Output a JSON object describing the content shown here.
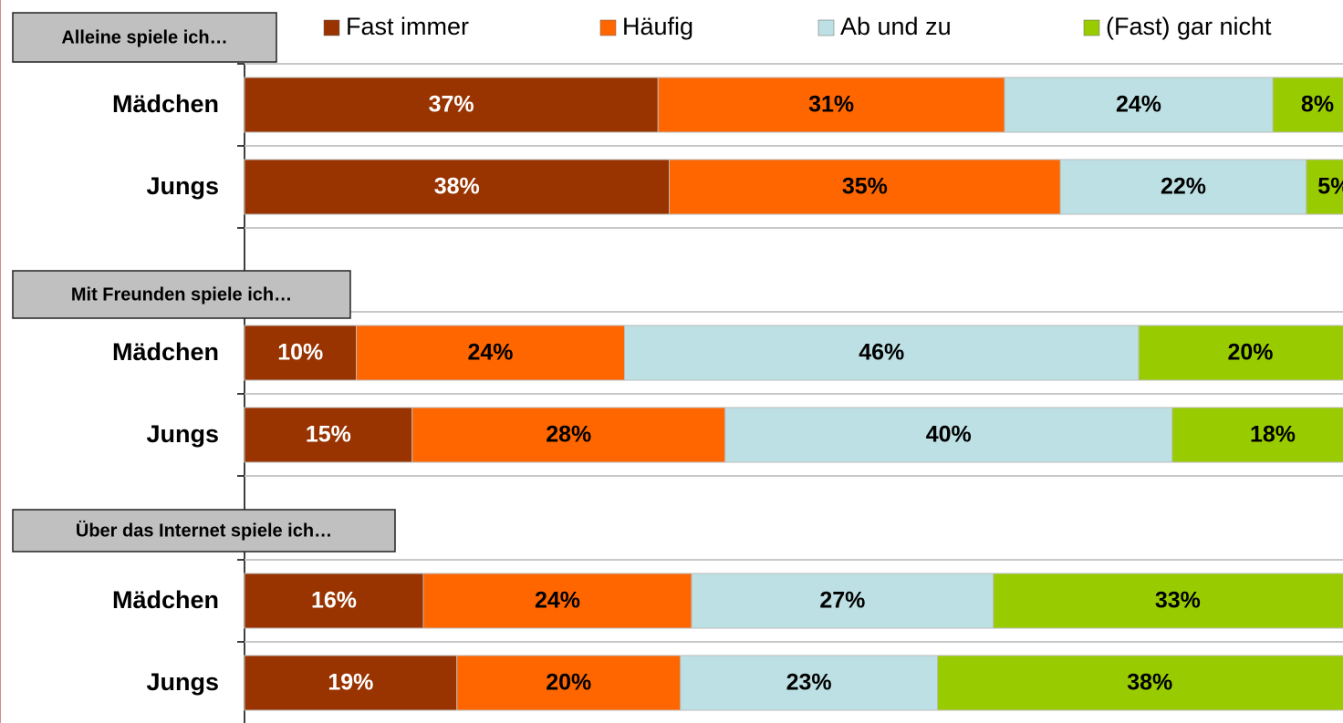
{
  "chart_data": {
    "type": "bar",
    "orientation": "horizontal",
    "stacked": true,
    "xlim": [
      0,
      100
    ],
    "legend": "top",
    "series": [
      {
        "name": "Fast immer",
        "color": "#993300"
      },
      {
        "name": "Häufig",
        "color": "#ff6600"
      },
      {
        "name": "Ab und zu",
        "color": "#bde0e4"
      },
      {
        "name": "(Fast) gar nicht",
        "color": "#99cc00"
      }
    ],
    "groups": [
      {
        "title": "Alleine spiele ich…",
        "categories": [
          "Mädchen",
          "Jungs"
        ],
        "values": [
          [
            37,
            31,
            24,
            8
          ],
          [
            38,
            35,
            22,
            5
          ]
        ],
        "value_labels": [
          [
            "37%",
            "31%",
            "24%",
            "8%"
          ],
          [
            "38%",
            "35%",
            "22%",
            "5%"
          ]
        ]
      },
      {
        "title": "Mit Freunden spiele ich…",
        "categories": [
          "Mädchen",
          "Jungs"
        ],
        "values": [
          [
            10,
            24,
            46,
            20
          ],
          [
            15,
            28,
            40,
            18
          ]
        ],
        "value_labels": [
          [
            "10%",
            "24%",
            "46%",
            "20%"
          ],
          [
            "15%",
            "28%",
            "40%",
            "18%"
          ]
        ]
      },
      {
        "title": "Über das Internet spiele ich…",
        "categories": [
          "Mädchen",
          "Jungs"
        ],
        "values": [
          [
            16,
            24,
            27,
            33
          ],
          [
            19,
            20,
            23,
            38
          ]
        ],
        "value_labels": [
          [
            "16%",
            "24%",
            "27%",
            "33%"
          ],
          [
            "19%",
            "20%",
            "23%",
            "38%"
          ]
        ]
      }
    ]
  }
}
